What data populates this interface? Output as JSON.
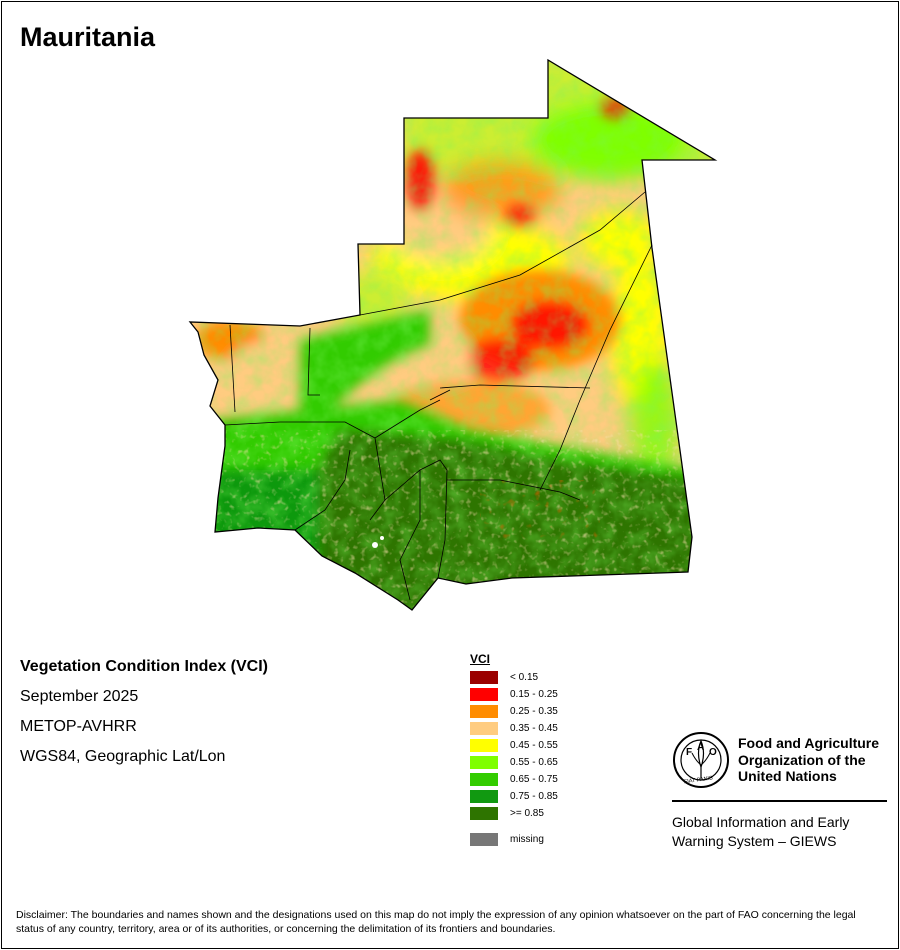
{
  "map": {
    "title": "Mauritania",
    "product": "Vegetation Condition Index (VCI)",
    "period": "September 2025",
    "sensor": "METOP-AVHRR",
    "projection": "WGS84, Geographic Lat/Lon"
  },
  "legend": {
    "title": "VCI",
    "classes": [
      {
        "label": "< 0.15",
        "color": "#9b0000"
      },
      {
        "label": "0.15 - 0.25",
        "color": "#ff0000"
      },
      {
        "label": "0.25 - 0.35",
        "color": "#ff8c00"
      },
      {
        "label": "0.35 - 0.45",
        "color": "#ffcc80"
      },
      {
        "label": "0.45 - 0.55",
        "color": "#ffff00"
      },
      {
        "label": "0.55 - 0.65",
        "color": "#7fff00"
      },
      {
        "label": "0.65 - 0.75",
        "color": "#33cc00"
      },
      {
        "label": "0.75 - 0.85",
        "color": "#119911"
      },
      {
        "label": ">= 0.85",
        "color": "#2e7400"
      }
    ],
    "missing": {
      "label": "missing",
      "color": "#777777"
    }
  },
  "logo": {
    "org_lines": [
      "Food and Agriculture",
      "Organization of the",
      "United Nations"
    ],
    "giews_lines": [
      "Global Information and Early",
      "Warning System – GIEWS"
    ],
    "emblem_letters": "FAO",
    "emblem_motto": "FIAT PANIS"
  },
  "disclaimer": "Disclaimer: The boundaries and names shown and the designations used on this map do not imply the expression of any opinion whatsoever on the part of FAO concerning the legal status of any country, territory, area or of its authorities, or concerning the delimitation of its frontiers and boundaries."
}
